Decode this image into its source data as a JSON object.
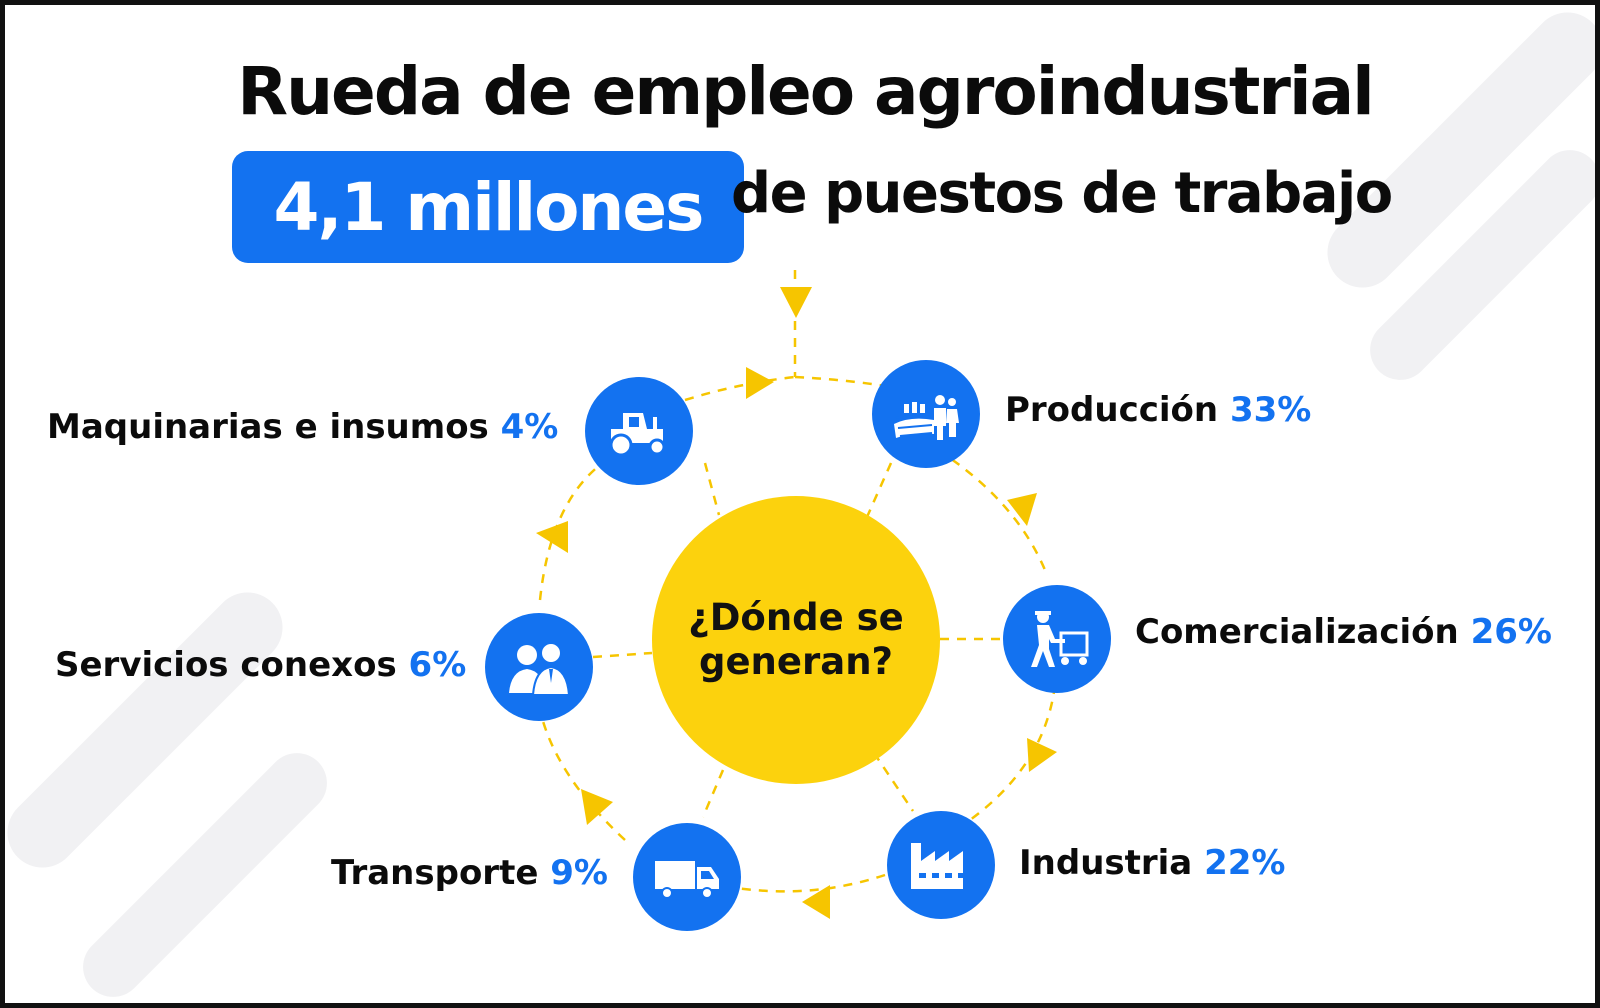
{
  "title": "Rueda de empleo agroindustrial",
  "highlight": "4,1 millones",
  "subtitle": "de puestos de trabajo",
  "center": {
    "line1": "¿Dónde se",
    "line2": "generan?"
  },
  "segments": [
    {
      "name": "Producción",
      "percent": "33%",
      "icon": "farmers-field-icon"
    },
    {
      "name": "Comercialización",
      "percent": "26%",
      "icon": "worker-cart-icon"
    },
    {
      "name": "Industria",
      "percent": "22%",
      "icon": "factory-icon"
    },
    {
      "name": "Transporte",
      "percent": "9%",
      "icon": "truck-icon"
    },
    {
      "name": "Servicios conexos",
      "percent": "6%",
      "icon": "people-icon"
    },
    {
      "name": "Maquinarias e insumos",
      "percent": "4%",
      "icon": "tractor-icon"
    }
  ],
  "colors": {
    "accent": "#1372f0",
    "center": "#fcd20d",
    "arrows": "#f6c500",
    "text": "#0b0b0b"
  }
}
